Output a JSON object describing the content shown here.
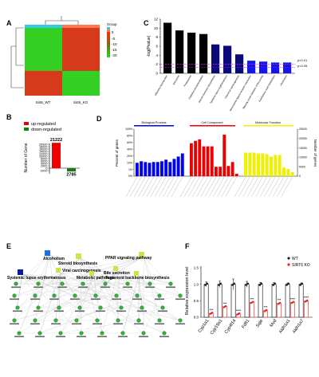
{
  "panels": {
    "A": {
      "letter": "A",
      "legend_title": "Group",
      "legend_ticks": [
        "5",
        "-5",
        "-10",
        "-15",
        "-20"
      ],
      "col_labels": [
        "Sirt6_WT",
        "Sirt6_KO"
      ],
      "colors": {
        "high": "#ff2a1a",
        "mid": "#7a6a1a",
        "low": "#22dd22",
        "group1": "#36c8e6",
        "group2": "#ff7a4a"
      }
    },
    "B": {
      "letter": "B",
      "legend": [
        "up-regulated",
        "down-regulated"
      ],
      "colors": {
        "up": "#ee0000",
        "down": "#1a7a1a"
      }
    },
    "C": {
      "letter": "C",
      "thresholds": [
        "p<0.01",
        "p<0.05"
      ]
    },
    "D": {
      "letter": "D",
      "groups": [
        "Biological Process",
        "Cell Component",
        "Molecular Function"
      ],
      "colors": {
        "bp": "#0000ee",
        "cc": "#ee0000",
        "mf": "#f0f000"
      }
    },
    "E": {
      "letter": "E",
      "pathways": [
        "Alcoholism",
        "Steroid biosynthesis",
        "PPAR signaling pathway",
        "Viral carcinogenesis",
        "Bile secretion",
        "Systemic lupus erythematosus",
        "Metabolic pathways",
        "Terpenoid backbone biosynthesis"
      ]
    },
    "F": {
      "letter": "F",
      "legend": [
        "WT",
        "SIRT6 KO"
      ]
    }
  },
  "chart_data": [
    {
      "id": "B",
      "type": "bar",
      "categories": [
        "up-regulated",
        "down-regulated"
      ],
      "values": [
        21222,
        -2785
      ],
      "data_labels": [
        "21222",
        "2785"
      ],
      "ylabel": "Number of Gene",
      "yticks": [
        "20000",
        "18000",
        "16000",
        "14000",
        "12000",
        "10000",
        "8000",
        "6000",
        "4000",
        "2000",
        "0",
        "-2000"
      ],
      "ylim": [
        -2785,
        21222
      ]
    },
    {
      "id": "C",
      "type": "bar",
      "categories": [
        "Olfactory transduction",
        "Ribosome",
        "Proteasome",
        "Oxidative phosphorylation",
        "Steroid hormone biosynthesis",
        "Systemic lupus erythematosus",
        "Chemical carcinogenesis",
        "Neuroactive ligand-receptor interaction",
        "Maturity onset diabetes of the young",
        "Arachidonic acid metabolism",
        "Alcoholism"
      ],
      "values": [
        11.2,
        9.5,
        9.0,
        8.7,
        6.4,
        6.1,
        4.2,
        2.8,
        2.6,
        2.4,
        2.4
      ],
      "colors": [
        "#000000",
        "#000000",
        "#000000",
        "#000000",
        "#0a0a7a",
        "#0a0a7a",
        "#0a0a7a",
        "#1515e8",
        "#1515e8",
        "#1515e8",
        "#1515e8"
      ],
      "ylabel": "-log(Pvalue)",
      "yticks": [
        "12",
        "10",
        "8",
        "6",
        "4",
        "2",
        "0"
      ],
      "ylim": [
        0,
        12
      ],
      "thresholds": [
        2.0,
        1.3
      ]
    },
    {
      "id": "D",
      "type": "bar",
      "ylabel_left": "Percent of genes",
      "ylabel_right": "Number of genes",
      "yticks_left": [
        "100%",
        "80%",
        "60%",
        "40%",
        "20%",
        "10%",
        "1%",
        "0%"
      ],
      "yticks_right": [
        "25000",
        "20000",
        "15000",
        "10000",
        "5000",
        "0"
      ],
      "series": [
        {
          "name": "Biological Process",
          "values": [
            17,
            19,
            18,
            17,
            18,
            18,
            19,
            21,
            18,
            22,
            25,
            29
          ]
        },
        {
          "name": "Cell Component",
          "values": [
            42,
            45,
            47,
            38,
            38,
            38,
            12,
            12,
            53,
            13,
            18,
            3
          ]
        },
        {
          "name": "Molecular Function",
          "values": [
            30,
            30,
            30,
            29,
            29,
            28,
            25,
            27,
            27,
            11,
            9,
            5
          ]
        }
      ]
    },
    {
      "id": "F",
      "type": "bar",
      "categories": [
        "Cyp1a1",
        "Cyp19a1",
        "Cyp4f14",
        "Fdft1",
        "Sqle",
        "Mvd",
        "Aldh1a1",
        "Aldh1a7"
      ],
      "ylabel": "Relative expression level",
      "yticks": [
        "1.5",
        "1.0",
        "0.5",
        "0.0"
      ],
      "ylim": [
        0,
        1.5
      ],
      "significance": [
        "***",
        "***",
        "****",
        "***",
        "***",
        "***",
        "****",
        "****"
      ],
      "series": [
        {
          "name": "WT",
          "values": [
            1.0,
            1.0,
            1.0,
            1.0,
            1.0,
            1.0,
            1.0,
            1.0
          ],
          "errors": [
            0.07,
            0.1,
            0.16,
            0.09,
            0.06,
            0.05,
            0.04,
            0.04
          ]
        },
        {
          "name": "SIRT6 KO",
          "values": [
            0.12,
            0.32,
            0.1,
            0.45,
            0.2,
            0.42,
            0.45,
            0.49
          ]
        }
      ]
    }
  ]
}
